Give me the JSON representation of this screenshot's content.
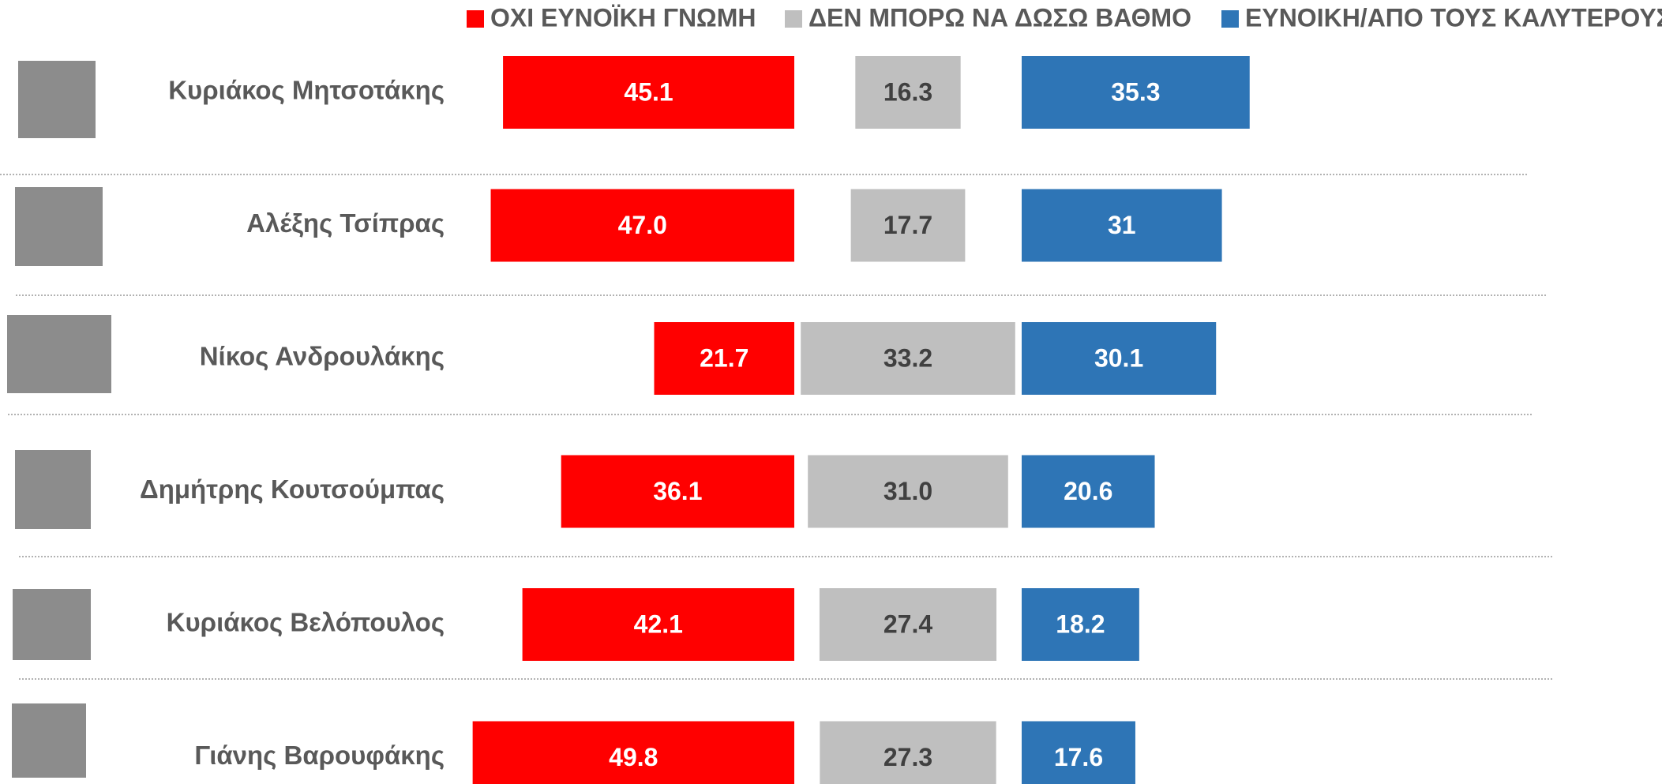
{
  "chart_data": {
    "type": "bar",
    "orientation": "horizontal",
    "categories": [
      "Κυριάκος Μητσοτάκης",
      "Αλέξης Τσίπρας",
      "Νίκος Ανδρουλάκης",
      "Δημήτρης Κουτσούμπας",
      "Κυριάκος Βελόπουλος",
      "Γιάνης Βαρουφάκης"
    ],
    "series": [
      {
        "name": "ΟΧΙ ΕΥΝΟΪΚΗ ΓΝΩΜΗ",
        "color": "#ff0000",
        "values": [
          45.1,
          47.0,
          21.7,
          36.1,
          42.1,
          49.8
        ],
        "value_labels": [
          "45.1",
          "47.0",
          "21.7",
          "36.1",
          "42.1",
          "49.8"
        ]
      },
      {
        "name": "ΔΕΝ ΜΠΟΡΩ ΝΑ ΔΩΣΩ ΒΑΘΜΟ",
        "color": "#bfbfbf",
        "values": [
          16.3,
          17.7,
          33.2,
          31.0,
          27.4,
          27.3
        ],
        "value_labels": [
          "16.3",
          "17.7",
          "33.2",
          "31.0",
          "27.4",
          "27.3"
        ]
      },
      {
        "name": "ΕΥΝΟΙΚΗ/ΑΠΟ ΤΟΥΣ ΚΑΛΥΤΕΡΟΥΣ",
        "color": "#2e75b6",
        "values": [
          35.3,
          31,
          30.1,
          20.6,
          18.2,
          17.6
        ],
        "value_labels": [
          "35.3",
          "31",
          "30.1",
          "20.6",
          "18.2",
          "17.6"
        ]
      }
    ]
  }
}
